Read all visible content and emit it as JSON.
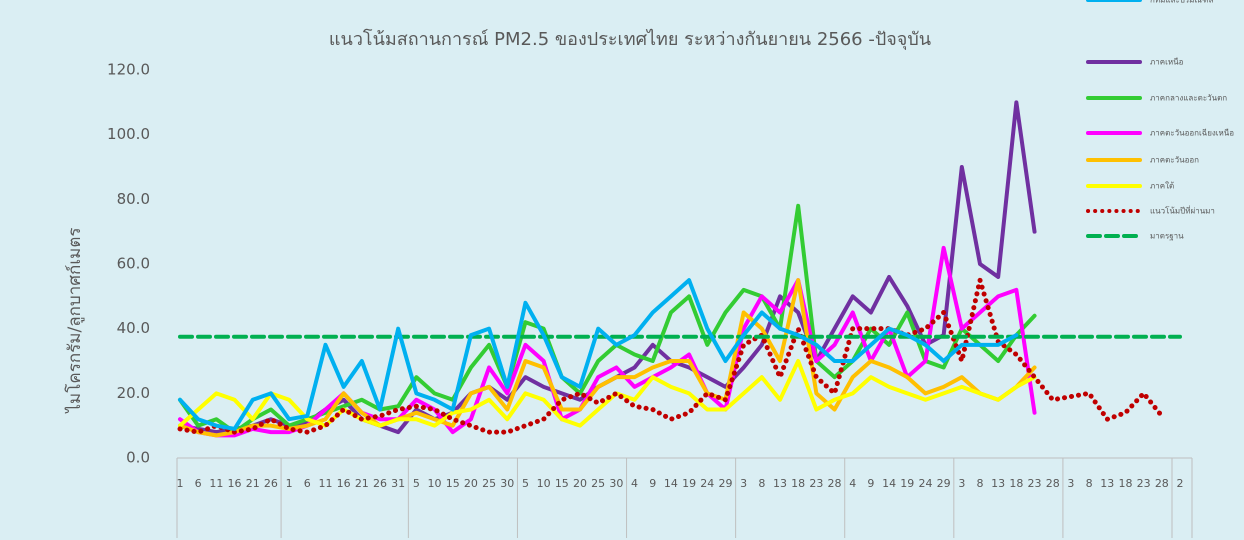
{
  "chart_data": {
    "type": "line",
    "title": "แนวโน้มสถานการณ์ PM2.5 ของประเทศไทย ระหว่างกันยายน 2566 -ปัจจุบัน",
    "y_label": "ไมโครกรัม/ลูกบาศก์เมตร",
    "ylim": [
      0,
      120
    ],
    "yticks": [
      {
        "value": 0,
        "label": "0.0"
      },
      {
        "value": 20,
        "label": "20.0"
      },
      {
        "value": 40,
        "label": "40.0"
      },
      {
        "value": 60,
        "label": "60.0"
      },
      {
        "value": 80,
        "label": "80.0"
      },
      {
        "value": 100,
        "label": "100.0"
      },
      {
        "value": 120,
        "label": "120.0"
      }
    ],
    "grid": false,
    "legend": "right",
    "categories": [
      "1",
      "6",
      "11",
      "16",
      "21",
      "26",
      "1",
      "6",
      "11",
      "16",
      "21",
      "26",
      "31",
      "5",
      "10",
      "15",
      "20",
      "25",
      "30",
      "5",
      "10",
      "15",
      "20",
      "25",
      "30",
      "4",
      "9",
      "14",
      "19",
      "24",
      "29",
      "3",
      "8",
      "13",
      "18",
      "23",
      "28",
      "4",
      "9",
      "14",
      "19",
      "24",
      "29",
      "3",
      "8",
      "13",
      "18",
      "23",
      "28",
      "3",
      "8",
      "13",
      "18",
      "23",
      "28",
      "2"
    ],
    "series": [
      {
        "name": "ภาคเหนือ",
        "color": "#7030a0",
        "style": "solid",
        "values": [
          10,
          9,
          8,
          9,
          10,
          12,
          10,
          11,
          15,
          18,
          12,
          10,
          8,
          15,
          12,
          14,
          20,
          22,
          18,
          25,
          22,
          20,
          18,
          22,
          25,
          28,
          35,
          30,
          28,
          25,
          22,
          28,
          35,
          50,
          45,
          30,
          40,
          50,
          45,
          56,
          47,
          35,
          38,
          90,
          60,
          56,
          110,
          70,
          null,
          null,
          null,
          null,
          null,
          null,
          null,
          null
        ]
      },
      {
        "name": "ภาคกลางและตะวันตก",
        "color": "#33cc33",
        "style": "solid",
        "values": [
          18,
          10,
          12,
          8,
          12,
          15,
          10,
          12,
          14,
          16,
          18,
          15,
          16,
          25,
          20,
          18,
          28,
          35,
          22,
          42,
          40,
          25,
          20,
          30,
          35,
          32,
          30,
          45,
          50,
          35,
          45,
          52,
          50,
          40,
          78,
          30,
          25,
          30,
          40,
          35,
          45,
          30,
          28,
          40,
          35,
          30,
          38,
          44,
          null,
          null,
          null,
          null,
          null,
          null,
          null,
          null
        ]
      },
      {
        "name": "ภาคตะวันออกเฉียงเหนือ",
        "color": "#ff00ff",
        "style": "solid",
        "values": [
          12,
          8,
          7,
          7,
          9,
          8,
          8,
          10,
          15,
          20,
          14,
          12,
          12,
          18,
          15,
          8,
          12,
          28,
          20,
          35,
          30,
          12,
          15,
          25,
          28,
          22,
          25,
          28,
          32,
          20,
          15,
          40,
          50,
          45,
          55,
          30,
          35,
          45,
          30,
          40,
          25,
          30,
          65,
          40,
          45,
          50,
          52,
          14,
          null,
          null,
          null,
          null,
          null,
          null,
          null,
          null
        ]
      },
      {
        "name": "ภาคตะวันออก",
        "color": "#ffc000",
        "style": "solid",
        "values": [
          10,
          8,
          7,
          8,
          10,
          10,
          9,
          10,
          12,
          20,
          14,
          10,
          12,
          14,
          12,
          10,
          20,
          22,
          15,
          30,
          28,
          15,
          15,
          22,
          25,
          25,
          28,
          30,
          30,
          20,
          18,
          45,
          40,
          30,
          55,
          20,
          15,
          25,
          30,
          28,
          25,
          20,
          22,
          25,
          20,
          18,
          22,
          28,
          null,
          null,
          null,
          null,
          null,
          null,
          null,
          null
        ]
      },
      {
        "name": "ภาคใต้",
        "color": "#ffff00",
        "style": "solid",
        "values": [
          10,
          15,
          20,
          18,
          12,
          20,
          18,
          12,
          10,
          15,
          12,
          10,
          12,
          12,
          10,
          14,
          15,
          18,
          12,
          20,
          18,
          12,
          10,
          15,
          20,
          18,
          25,
          22,
          20,
          15,
          15,
          20,
          25,
          18,
          30,
          15,
          18,
          20,
          25,
          22,
          20,
          18,
          20,
          22,
          20,
          18,
          22,
          25,
          null,
          null,
          null,
          null,
          null,
          null,
          null,
          null
        ]
      },
      {
        "name": "แนวโน้มปีที่ผ่านมา",
        "color": "#c00000",
        "style": "dotted",
        "values": [
          9,
          8,
          10,
          8,
          9,
          12,
          9,
          8,
          10,
          15,
          12,
          13,
          15,
          16,
          15,
          12,
          10,
          8,
          8,
          10,
          12,
          18,
          20,
          17,
          20,
          16,
          15,
          12,
          14,
          20,
          18,
          35,
          38,
          25,
          40,
          25,
          20,
          40,
          40,
          40,
          38,
          40,
          45,
          30,
          55,
          36,
          32,
          25,
          18,
          19,
          20,
          12,
          14,
          20,
          13,
          null
        ]
      },
      {
        "name": "มาตรฐาน",
        "color": "#00b050",
        "style": "dashed",
        "values": [
          37.5,
          37.5,
          37.5,
          37.5,
          37.5,
          37.5,
          37.5,
          37.5,
          37.5,
          37.5,
          37.5,
          37.5,
          37.5,
          37.5,
          37.5,
          37.5,
          37.5,
          37.5,
          37.5,
          37.5,
          37.5,
          37.5,
          37.5,
          37.5,
          37.5,
          37.5,
          37.5,
          37.5,
          37.5,
          37.5,
          37.5,
          37.5,
          37.5,
          37.5,
          37.5,
          37.5,
          37.5,
          37.5,
          37.5,
          37.5,
          37.5,
          37.5,
          37.5,
          37.5,
          37.5,
          37.5,
          37.5,
          37.5,
          37.5,
          37.5,
          37.5,
          37.5,
          37.5,
          37.5,
          37.5,
          37.5
        ]
      },
      {
        "name": "กทมและปริมณฑล",
        "color": "#00b0f0",
        "style": "solid",
        "values": [
          18,
          12,
          10,
          9,
          18,
          20,
          12,
          13,
          35,
          22,
          30,
          15,
          40,
          20,
          18,
          15,
          38,
          40,
          22,
          48,
          38,
          25,
          22,
          40,
          35,
          38,
          45,
          50,
          55,
          40,
          30,
          38,
          45,
          40,
          38,
          35,
          30,
          30,
          35,
          40,
          38,
          35,
          30,
          35,
          35,
          35,
          38,
          null,
          null,
          null,
          null,
          null,
          null,
          null,
          null,
          null
        ]
      }
    ]
  }
}
